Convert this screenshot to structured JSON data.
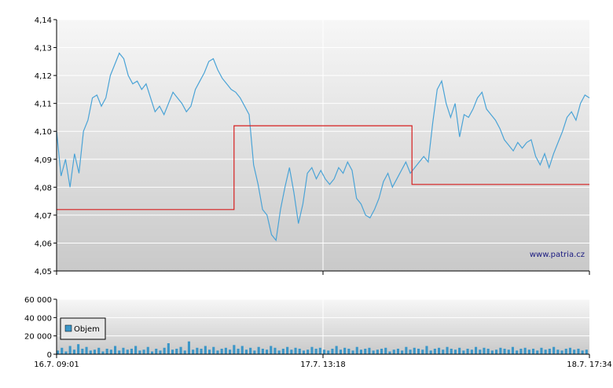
{
  "watermark": "www.patria.cz",
  "colors": {
    "price_line": "#4aa3d6",
    "reference_line": "#d61e1e",
    "volume_bars": "#3a96c8",
    "grid": "#ffffff",
    "plot_bg_top": "#f7f7f7",
    "plot_bg_bottom": "#c9c9c9"
  },
  "chart_data": [
    {
      "type": "line",
      "title": "",
      "xlabel": "",
      "ylabel": "",
      "ylim": [
        4.05,
        4.14
      ],
      "y_ticks": [
        "4,05",
        "4,06",
        "4,07",
        "4,08",
        "4,09",
        "4,10",
        "4,11",
        "4,12",
        "4,13",
        "4,14"
      ],
      "x_ticks": [
        "16.7. 09:01",
        "17.7. 13:18",
        "18.7. 17:34"
      ],
      "grid": true,
      "legend": "none",
      "series": [
        {
          "values": [
            4.1,
            4.084,
            4.09,
            4.08,
            4.092,
            4.085,
            4.1,
            4.104,
            4.112,
            4.113,
            4.109,
            4.112,
            4.12,
            4.124,
            4.128,
            4.126,
            4.12,
            4.117,
            4.118,
            4.115,
            4.117,
            4.112,
            4.107,
            4.109,
            4.106,
            4.11,
            4.114,
            4.112,
            4.11,
            4.107,
            4.109,
            4.115,
            4.118,
            4.121,
            4.125,
            4.126,
            4.122,
            4.119,
            4.117,
            4.115,
            4.114,
            4.112,
            4.109,
            4.106,
            4.088,
            4.081,
            4.072,
            4.07,
            4.063,
            4.061,
            4.072,
            4.08,
            4.087,
            4.078,
            4.067,
            4.074,
            4.085,
            4.087,
            4.083,
            4.086,
            4.083,
            4.081,
            4.083,
            4.087,
            4.085,
            4.089,
            4.086,
            4.076,
            4.074,
            4.07,
            4.069,
            4.072,
            4.076,
            4.082,
            4.085,
            4.08,
            4.083,
            4.086,
            4.089,
            4.085,
            4.087,
            4.089,
            4.091,
            4.089,
            4.103,
            4.115,
            4.118,
            4.11,
            4.105,
            4.11,
            4.098,
            4.106,
            4.105,
            4.108,
            4.112,
            4.114,
            4.108,
            4.106,
            4.104,
            4.101,
            4.097,
            4.095,
            4.093,
            4.096,
            4.094,
            4.096,
            4.097,
            4.091,
            4.088,
            4.092,
            4.087,
            4.092,
            4.096,
            4.1,
            4.105,
            4.107,
            4.104,
            4.11,
            4.113,
            4.112
          ],
          "x_range": "16.7. 09:01 – 18.7. 17:34 (evenly spaced)"
        },
        {
          "name": "",
          "values": [
            4.072,
            4.072,
            4.102,
            4.102,
            4.081,
            4.081
          ],
          "x_positions": [
            0,
            0.333,
            0.333,
            0.667,
            0.667,
            1.0
          ]
        }
      ]
    },
    {
      "type": "bar",
      "title": "",
      "xlabel": "",
      "ylabel": "",
      "ylim": [
        0,
        60000
      ],
      "y_ticks": [
        "0",
        "20 000",
        "40 000",
        "60 000"
      ],
      "x_ticks": [
        "16.7. 09:01",
        "17.7. 13:18",
        "18.7. 17:34"
      ],
      "grid": true,
      "legend": "top-left",
      "series": [
        {
          "name": "Objem",
          "values": [
            4000,
            7000,
            3000,
            9000,
            5000,
            11000,
            6000,
            8000,
            4000,
            5000,
            7000,
            3000,
            6000,
            5000,
            9000,
            4000,
            7000,
            5000,
            6000,
            9000,
            4000,
            5000,
            8000,
            3000,
            6000,
            4000,
            7000,
            12000,
            5000,
            6000,
            8000,
            4000,
            14000,
            5000,
            7000,
            6000,
            9000,
            5000,
            8000,
            4000,
            6000,
            7000,
            5000,
            10000,
            6000,
            9000,
            5000,
            7000,
            4000,
            8000,
            6000,
            5000,
            9000,
            7000,
            4000,
            6000,
            8000,
            5000,
            7000,
            6000,
            4000,
            5000,
            8000,
            6000,
            7000,
            5000,
            4000,
            6000,
            9000,
            5000,
            7000,
            6000,
            4000,
            8000,
            5000,
            6000,
            7000,
            4000,
            5000,
            6000,
            7000,
            3000,
            5000,
            6000,
            4000,
            8000,
            5000,
            7000,
            6000,
            5000,
            9000,
            4000,
            6000,
            7000,
            5000,
            8000,
            6000,
            5000,
            7000,
            4000,
            6000,
            5000,
            8000,
            5000,
            7000,
            6000,
            4000,
            5000,
            7000,
            6000,
            5000,
            8000,
            4000,
            6000,
            7000,
            5000,
            6000,
            4000,
            7000,
            5000,
            6000,
            8000,
            5000,
            4000,
            6000,
            7000,
            5000,
            6000,
            4000,
            5000
          ]
        }
      ]
    }
  ]
}
